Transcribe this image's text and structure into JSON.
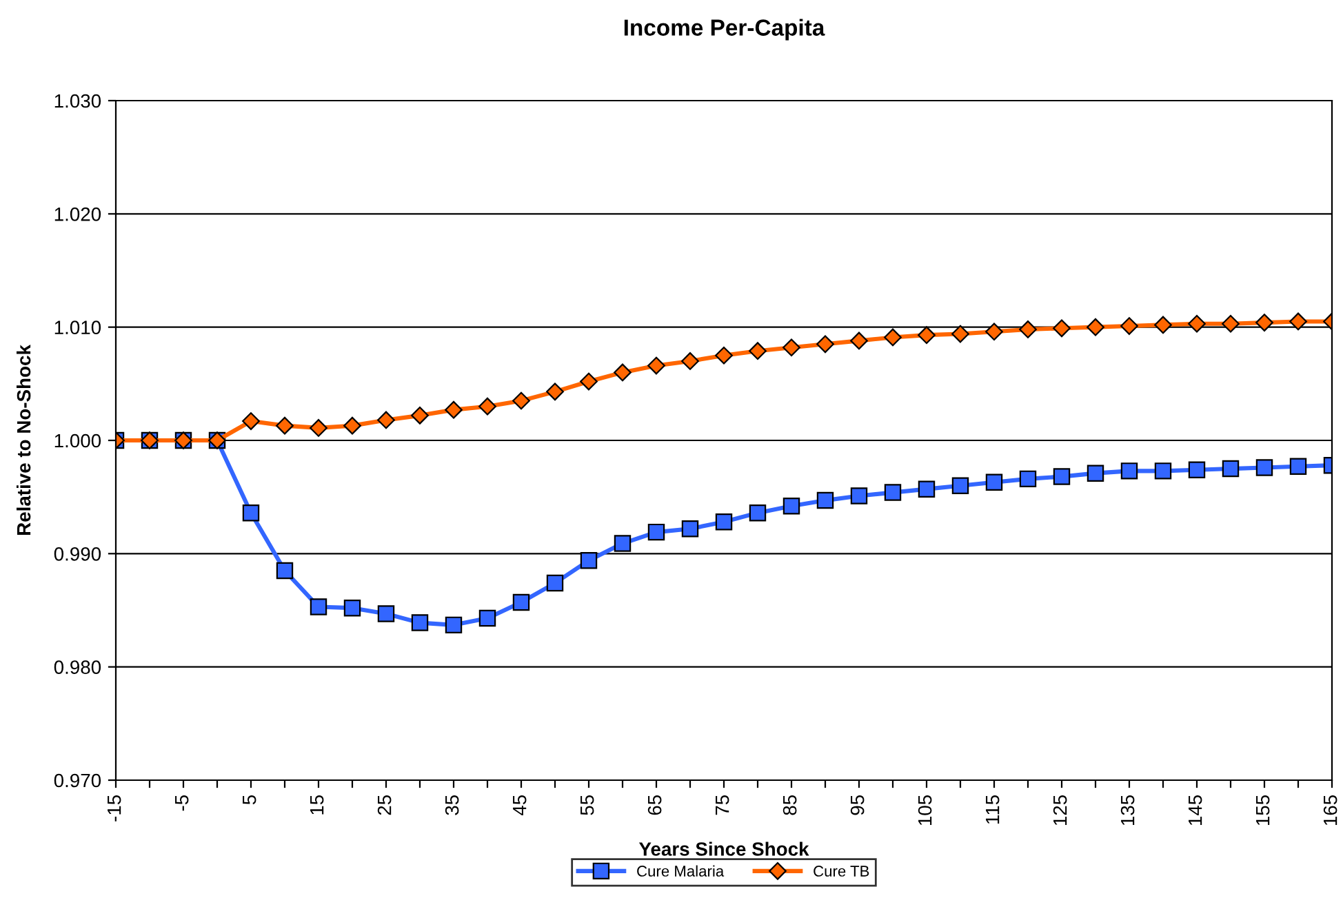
{
  "chart_data": {
    "type": "line",
    "title": "Income Per-Capita",
    "xlabel": "Years Since Shock",
    "ylabel": "Relative to No-Shock",
    "categories": [
      "-15",
      null,
      "-5",
      null,
      "5",
      null,
      "15",
      null,
      "25",
      null,
      "35",
      null,
      "45",
      null,
      "55",
      null,
      "65",
      null,
      "75",
      null,
      "85",
      null,
      "95",
      null,
      "105",
      null,
      "115",
      null,
      "125",
      null,
      "135",
      null,
      "145",
      null,
      "155",
      null,
      "165"
    ],
    "series": [
      {
        "name": "Cure Malaria",
        "color": "#3366ff",
        "marker": "square",
        "values": [
          1.0,
          1.0,
          1.0,
          1.0,
          0.9936,
          0.9885,
          0.9853,
          0.9852,
          0.9847,
          0.9839,
          0.9837,
          0.9843,
          0.9857,
          0.9874,
          0.9894,
          0.9909,
          0.9919,
          0.9922,
          0.9928,
          0.9936,
          0.9942,
          0.9947,
          0.9951,
          0.9954,
          0.9957,
          0.996,
          0.9963,
          0.9966,
          0.9968,
          0.9971,
          0.9973,
          0.9973,
          0.9974,
          0.9975,
          0.9976,
          0.9977,
          0.9978
        ]
      },
      {
        "name": "Cure TB",
        "color": "#ff6600",
        "marker": "diamond",
        "values": [
          1.0,
          1.0,
          1.0,
          1.0,
          1.0017,
          1.0013,
          1.0011,
          1.0013,
          1.0018,
          1.0022,
          1.0027,
          1.003,
          1.0035,
          1.0043,
          1.0052,
          1.006,
          1.0066,
          1.007,
          1.0075,
          1.0079,
          1.0082,
          1.0085,
          1.0088,
          1.0091,
          1.0093,
          1.0094,
          1.0096,
          1.0098,
          1.0099,
          1.01,
          1.0101,
          1.0102,
          1.0103,
          1.0103,
          1.0104,
          1.0105,
          1.0105
        ]
      }
    ],
    "ylim": [
      0.97,
      1.03
    ],
    "yticks": [
      {
        "value": 0.97,
        "label": "0.970"
      },
      {
        "value": 0.98,
        "label": "0.980"
      },
      {
        "value": 0.99,
        "label": "0.990"
      },
      {
        "value": 1.0,
        "label": "1.000"
      },
      {
        "value": 1.01,
        "label": "1.010"
      },
      {
        "value": 1.02,
        "label": "1.020"
      },
      {
        "value": 1.03,
        "label": "1.030"
      }
    ],
    "grid": "y",
    "legend": "bottom",
    "line_style": "solid"
  }
}
